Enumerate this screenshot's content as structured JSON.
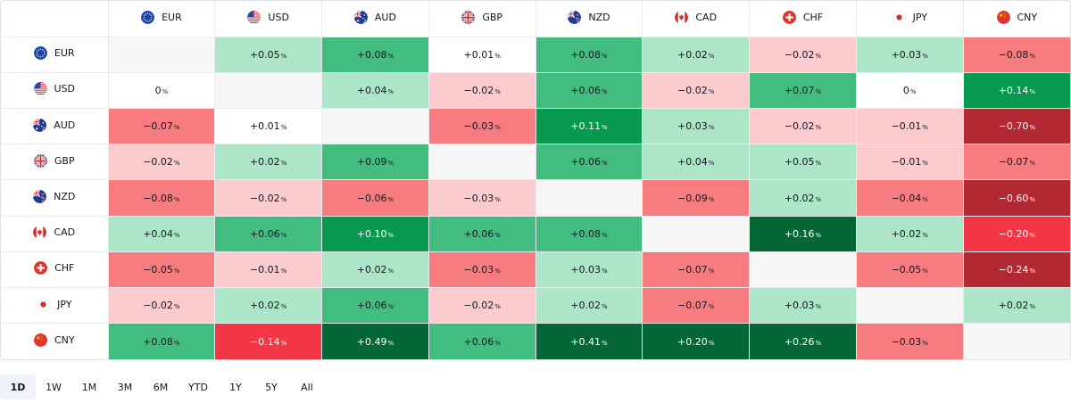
{
  "currencies": [
    {
      "code": "EUR",
      "icon": "eu-flag-icon"
    },
    {
      "code": "USD",
      "icon": "us-flag-icon"
    },
    {
      "code": "AUD",
      "icon": "au-flag-icon"
    },
    {
      "code": "GBP",
      "icon": "gb-flag-icon"
    },
    {
      "code": "NZD",
      "icon": "nz-flag-icon"
    },
    {
      "code": "CAD",
      "icon": "ca-flag-icon"
    },
    {
      "code": "CHF",
      "icon": "ch-flag-icon"
    },
    {
      "code": "JPY",
      "icon": "jp-flag-icon"
    },
    {
      "code": "CNY",
      "icon": "cn-flag-icon"
    }
  ],
  "percent_symbol": "%",
  "matrix": [
    [
      null,
      "+0.05",
      "+0.08",
      "+0.01",
      "+0.08",
      "+0.02",
      "−0.02",
      "+0.03",
      "−0.08"
    ],
    [
      "0",
      null,
      "+0.04",
      "−0.02",
      "+0.06",
      "−0.02",
      "+0.07",
      "0",
      "+0.14"
    ],
    [
      "−0.07",
      "+0.01",
      null,
      "−0.03",
      "+0.11",
      "+0.03",
      "−0.02",
      "−0.01",
      "−0.70"
    ],
    [
      "−0.02",
      "+0.02",
      "+0.09",
      null,
      "+0.06",
      "+0.04",
      "+0.05",
      "−0.01",
      "−0.07"
    ],
    [
      "−0.08",
      "−0.02",
      "−0.06",
      "−0.03",
      null,
      "−0.09",
      "+0.02",
      "−0.04",
      "−0.60"
    ],
    [
      "+0.04",
      "+0.06",
      "+0.10",
      "+0.06",
      "+0.08",
      null,
      "+0.16",
      "+0.02",
      "−0.20"
    ],
    [
      "−0.05",
      "−0.01",
      "+0.02",
      "−0.03",
      "+0.03",
      "−0.07",
      null,
      "−0.05",
      "−0.24"
    ],
    [
      "−0.02",
      "+0.02",
      "+0.06",
      "−0.02",
      "+0.02",
      "−0.07",
      "+0.03",
      null,
      "+0.02"
    ],
    [
      "+0.08",
      "−0.14",
      "+0.49",
      "+0.06",
      "+0.41",
      "+0.20",
      "+0.26",
      "−0.03",
      null
    ]
  ],
  "cell_colors": [
    [
      null,
      "#ace5c8",
      "#42bd7f",
      "#ffffff",
      "#42bd7f",
      "#ace5c8",
      "#fccbcd",
      "#ace5c8",
      "#f77c80"
    ],
    [
      "#ffffff",
      null,
      "#ace5c8",
      "#fccbcd",
      "#42bd7f",
      "#fccbcd",
      "#42bd7f",
      "#ffffff",
      "#089950"
    ],
    [
      "#f77c80",
      "#ffffff",
      null,
      "#f77c80",
      "#089950",
      "#ace5c8",
      "#fccbcd",
      "#fccbcd",
      "#b22833"
    ],
    [
      "#fccbcd",
      "#ace5c8",
      "#42bd7f",
      null,
      "#42bd7f",
      "#ace5c8",
      "#ace5c8",
      "#fccbcd",
      "#f77c80"
    ],
    [
      "#f77c80",
      "#fccbcd",
      "#f77c80",
      "#fccbcd",
      null,
      "#f77c80",
      "#ace5c8",
      "#f77c80",
      "#b22833"
    ],
    [
      "#ace5c8",
      "#42bd7f",
      "#089950",
      "#42bd7f",
      "#42bd7f",
      null,
      "#056636",
      "#ace5c8",
      "#f23645"
    ],
    [
      "#f77c80",
      "#fccbcd",
      "#ace5c8",
      "#f77c80",
      "#ace5c8",
      "#f77c80",
      null,
      "#f77c80",
      "#b22833"
    ],
    [
      "#fccbcd",
      "#ace5c8",
      "#42bd7f",
      "#fccbcd",
      "#ace5c8",
      "#f77c80",
      "#ace5c8",
      null,
      "#ace5c8"
    ],
    [
      "#42bd7f",
      "#f23645",
      "#056636",
      "#42bd7f",
      "#056636",
      "#056636",
      "#056636",
      "#f77c80",
      null
    ]
  ],
  "dark_backgrounds": [
    "#089950",
    "#056636",
    "#b22833",
    "#f23645"
  ],
  "periods": [
    "1D",
    "1W",
    "1M",
    "3M",
    "6M",
    "YTD",
    "1Y",
    "5Y",
    "All"
  ],
  "active_period": "1D"
}
